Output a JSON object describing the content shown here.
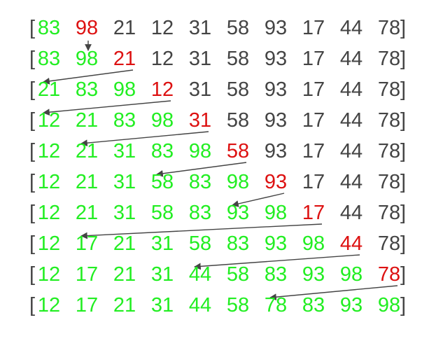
{
  "colors": {
    "sorted": "#22ee22",
    "current": "#dd1111",
    "unsorted": "#444444",
    "bracket": "#444444",
    "arrow": "#444444"
  },
  "brackets": {
    "open": "[",
    "close": "]"
  },
  "rows": [
    {
      "values": [
        "83",
        "98",
        "21",
        "12",
        "31",
        "58",
        "93",
        "17",
        "44",
        "78"
      ],
      "states": [
        "s",
        "c",
        "u",
        "u",
        "u",
        "u",
        "u",
        "u",
        "u",
        "u"
      ],
      "arrow_from": 1,
      "arrow_to": 1
    },
    {
      "values": [
        "83",
        "98",
        "21",
        "12",
        "31",
        "58",
        "93",
        "17",
        "44",
        "78"
      ],
      "states": [
        "s",
        "s",
        "c",
        "u",
        "u",
        "u",
        "u",
        "u",
        "u",
        "u"
      ],
      "arrow_from": 2,
      "arrow_to": 0
    },
    {
      "values": [
        "21",
        "83",
        "98",
        "12",
        "31",
        "58",
        "93",
        "17",
        "44",
        "78"
      ],
      "states": [
        "s",
        "s",
        "s",
        "c",
        "u",
        "u",
        "u",
        "u",
        "u",
        "u"
      ],
      "arrow_from": 3,
      "arrow_to": 0
    },
    {
      "values": [
        "12",
        "21",
        "83",
        "98",
        "31",
        "58",
        "93",
        "17",
        "44",
        "78"
      ],
      "states": [
        "s",
        "s",
        "s",
        "s",
        "c",
        "u",
        "u",
        "u",
        "u",
        "u"
      ],
      "arrow_from": 4,
      "arrow_to": 1
    },
    {
      "values": [
        "12",
        "21",
        "31",
        "83",
        "98",
        "58",
        "93",
        "17",
        "44",
        "78"
      ],
      "states": [
        "s",
        "s",
        "s",
        "s",
        "s",
        "c",
        "u",
        "u",
        "u",
        "u"
      ],
      "arrow_from": 5,
      "arrow_to": 3
    },
    {
      "values": [
        "12",
        "21",
        "31",
        "58",
        "83",
        "98",
        "93",
        "17",
        "44",
        "78"
      ],
      "states": [
        "s",
        "s",
        "s",
        "s",
        "s",
        "s",
        "c",
        "u",
        "u",
        "u"
      ],
      "arrow_from": 6,
      "arrow_to": 5
    },
    {
      "values": [
        "12",
        "21",
        "31",
        "58",
        "83",
        "93",
        "98",
        "17",
        "44",
        "78"
      ],
      "states": [
        "s",
        "s",
        "s",
        "s",
        "s",
        "s",
        "s",
        "c",
        "u",
        "u"
      ],
      "arrow_from": 7,
      "arrow_to": 1
    },
    {
      "values": [
        "12",
        "17",
        "21",
        "31",
        "58",
        "83",
        "93",
        "98",
        "44",
        "78"
      ],
      "states": [
        "s",
        "s",
        "s",
        "s",
        "s",
        "s",
        "s",
        "s",
        "c",
        "u"
      ],
      "arrow_from": 8,
      "arrow_to": 4
    },
    {
      "values": [
        "12",
        "17",
        "21",
        "31",
        "44",
        "58",
        "83",
        "93",
        "98",
        "78"
      ],
      "states": [
        "s",
        "s",
        "s",
        "s",
        "s",
        "s",
        "s",
        "s",
        "s",
        "c"
      ],
      "arrow_from": 9,
      "arrow_to": 6
    },
    {
      "values": [
        "12",
        "17",
        "21",
        "31",
        "44",
        "58",
        "78",
        "83",
        "93",
        "98"
      ],
      "states": [
        "s",
        "s",
        "s",
        "s",
        "s",
        "s",
        "s",
        "s",
        "s",
        "s"
      ],
      "arrow_from": null,
      "arrow_to": null
    }
  ]
}
